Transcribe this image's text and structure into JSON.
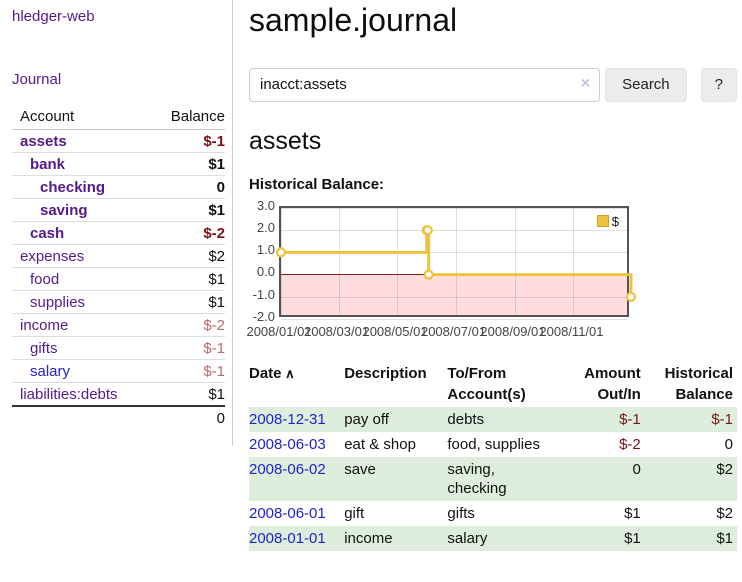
{
  "sidebar": {
    "brand": "hledger-web",
    "journal_label": "Journal",
    "accounts_table": {
      "headers": [
        "Account",
        "Balance"
      ],
      "rows": [
        {
          "account": "assets",
          "balance": "$-1",
          "level": 1,
          "bold": true,
          "balance_class": "neg-strong"
        },
        {
          "account": "bank",
          "balance": "$1",
          "level": 2,
          "bold": true,
          "balance_class": ""
        },
        {
          "account": "checking",
          "balance": "0",
          "level": 3,
          "bold": true,
          "balance_class": ""
        },
        {
          "account": "saving",
          "balance": "$1",
          "level": 3,
          "bold": true,
          "balance_class": ""
        },
        {
          "account": "cash",
          "balance": "$-2",
          "level": 2,
          "bold": true,
          "balance_class": "neg-strong"
        },
        {
          "account": "expenses",
          "balance": "$2",
          "level": 1,
          "bold": false,
          "balance_class": ""
        },
        {
          "account": "food",
          "balance": "$1",
          "level": 2,
          "bold": false,
          "balance_class": ""
        },
        {
          "account": "supplies",
          "balance": "$1",
          "level": 2,
          "bold": false,
          "balance_class": ""
        },
        {
          "account": "income",
          "balance": "$-2",
          "level": 1,
          "bold": false,
          "balance_class": "neg-soft"
        },
        {
          "account": "gifts",
          "balance": "$-1",
          "level": 2,
          "bold": false,
          "balance_class": "neg-soft"
        },
        {
          "account": "salary",
          "balance": "$-1",
          "level": 2,
          "bold": false,
          "balance_class": "neg-soft",
          "link_color": "blue"
        },
        {
          "account": "liabilities:debts",
          "balance": "$1",
          "level": 1,
          "bold": false,
          "balance_class": ""
        }
      ],
      "total": "0"
    }
  },
  "main": {
    "title": "sample.journal",
    "search": {
      "value": "inacct:assets",
      "clear_icon": "×",
      "search_label": "Search",
      "help_label": "?"
    },
    "account_heading": "assets",
    "chart_heading": "Historical Balance:"
  },
  "chart_data": {
    "type": "line",
    "step": true,
    "title": "Historical Balance",
    "series": [
      {
        "name": "$",
        "color": "#EDC240",
        "points": [
          [
            "2008-01-01",
            1
          ],
          [
            "2008-06-01",
            2
          ],
          [
            "2008-06-02",
            2
          ],
          [
            "2008-06-03",
            0
          ],
          [
            "2008-12-31",
            -1
          ]
        ]
      }
    ],
    "x_range": [
      "2008-01-01",
      "2008-12-31"
    ],
    "ylim": [
      -2,
      3
    ],
    "y_ticks": [
      "3.0",
      "2.0",
      "1.0",
      "0.0",
      "-1.0",
      "-2.0"
    ],
    "x_ticks": [
      "2008/01/01",
      "2008/03/01",
      "2008/05/01",
      "2008/07/01",
      "2008/09/01",
      "2008/11/01"
    ],
    "grid": true,
    "legend_position": "top-right",
    "negative_region_color": "#ffdddd",
    "zero_line_color": "#8b1a1a"
  },
  "transactions": {
    "headers": [
      {
        "lines": [
          "Date"
        ],
        "align": "left",
        "sort_arrow": "∧"
      },
      {
        "lines": [
          "Description"
        ],
        "align": "left"
      },
      {
        "lines": [
          "To/From",
          "Account(s)"
        ],
        "align": "left"
      },
      {
        "lines": [
          "Amount",
          "Out/In"
        ],
        "align": "right"
      },
      {
        "lines": [
          "Historical",
          "Balance"
        ],
        "align": "right"
      }
    ],
    "rows": [
      {
        "date": "2008-12-31",
        "description": "pay off",
        "accounts": "debts",
        "amount": "$-1",
        "amount_negative": true,
        "balance": "$-1",
        "balance_negative": true
      },
      {
        "date": "2008-06-03",
        "description": "eat & shop",
        "accounts": "food, supplies",
        "amount": "$-2",
        "amount_negative": true,
        "balance": "0",
        "balance_negative": false
      },
      {
        "date": "2008-06-02",
        "description": "save",
        "accounts": "saving, checking",
        "amount": "0",
        "amount_negative": false,
        "balance": "$2",
        "balance_negative": false
      },
      {
        "date": "2008-06-01",
        "description": "gift",
        "accounts": "gifts",
        "amount": "$1",
        "amount_negative": false,
        "balance": "$2",
        "balance_negative": false
      },
      {
        "date": "2008-01-01",
        "description": "income",
        "accounts": "salary",
        "amount": "$1",
        "amount_negative": false,
        "balance": "$1",
        "balance_negative": false
      }
    ]
  },
  "colors": {
    "link_purple": "#551A8B",
    "link_blue": "#2222CC",
    "negative_strong": "#7d1216",
    "negative_soft": "#bb6b6b",
    "row_green": "#ddeedd",
    "chart_line": "#EDC240",
    "chart_negative_fill": "#ffdddd",
    "chart_zero_line": "#8b1a1a",
    "button_bg": "#ececec"
  }
}
